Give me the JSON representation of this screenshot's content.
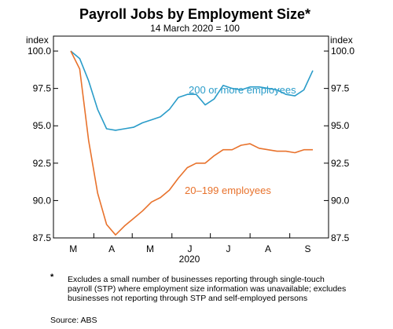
{
  "chart_data": {
    "type": "line",
    "title": "Payroll Jobs by Employment Size*",
    "subtitle": "14 March 2020 = 100",
    "y_unit_left": "index",
    "y_unit_right": "index",
    "ylim": [
      87.5,
      101.0
    ],
    "yticks": [
      "100.0",
      "97.5",
      "95.0",
      "92.5",
      "90.0",
      "87.5"
    ],
    "ytick_values": [
      100.0,
      97.5,
      95.0,
      92.5,
      90.0,
      87.5
    ],
    "xtick_labels": [
      "M",
      "A",
      "M",
      "J",
      "J",
      "A",
      "S"
    ],
    "year_label": "2020",
    "grid": false,
    "series": [
      {
        "name": "200 or more employees",
        "color": "#2a9cc9",
        "x": [
          "2020-03-14",
          "2020-03-21",
          "2020-03-28",
          "2020-04-04",
          "2020-04-11",
          "2020-04-18",
          "2020-04-25",
          "2020-05-02",
          "2020-05-09",
          "2020-05-16",
          "2020-05-23",
          "2020-05-30",
          "2020-06-06",
          "2020-06-13",
          "2020-06-20",
          "2020-06-27",
          "2020-07-04",
          "2020-07-11",
          "2020-07-18",
          "2020-07-25",
          "2020-08-01",
          "2020-08-08",
          "2020-08-15",
          "2020-08-22",
          "2020-08-29",
          "2020-09-05",
          "2020-09-12",
          "2020-09-19"
        ],
        "values": [
          100.0,
          99.5,
          98.0,
          96.1,
          94.8,
          94.7,
          94.8,
          94.9,
          95.2,
          95.4,
          95.6,
          96.1,
          96.9,
          97.1,
          97.1,
          96.4,
          96.8,
          97.7,
          97.5,
          97.4,
          97.6,
          97.6,
          97.5,
          97.4,
          97.1,
          97.0,
          97.4,
          98.7
        ]
      },
      {
        "name": "20–199 employees",
        "color": "#e8722c",
        "x": [
          "2020-03-14",
          "2020-03-21",
          "2020-03-28",
          "2020-04-04",
          "2020-04-11",
          "2020-04-18",
          "2020-04-25",
          "2020-05-02",
          "2020-05-09",
          "2020-05-16",
          "2020-05-23",
          "2020-05-30",
          "2020-06-06",
          "2020-06-13",
          "2020-06-20",
          "2020-06-27",
          "2020-07-04",
          "2020-07-11",
          "2020-07-18",
          "2020-07-25",
          "2020-08-01",
          "2020-08-08",
          "2020-08-15",
          "2020-08-22",
          "2020-08-29",
          "2020-09-05",
          "2020-09-12",
          "2020-09-19"
        ],
        "values": [
          100.0,
          98.8,
          94.0,
          90.5,
          88.4,
          87.7,
          88.3,
          88.8,
          89.3,
          89.9,
          90.2,
          90.7,
          91.5,
          92.2,
          92.5,
          92.5,
          93.0,
          93.4,
          93.4,
          93.7,
          93.8,
          93.5,
          93.4,
          93.3,
          93.3,
          93.2,
          93.4,
          93.4
        ]
      }
    ]
  },
  "footnote_marker": "*",
  "footnote": "Excludes a small number of businesses reporting through single-touch payroll (STP) where employment size information was unavailable; excludes businesses not reporting through STP and self-employed persons",
  "source": "Source:   ABS"
}
